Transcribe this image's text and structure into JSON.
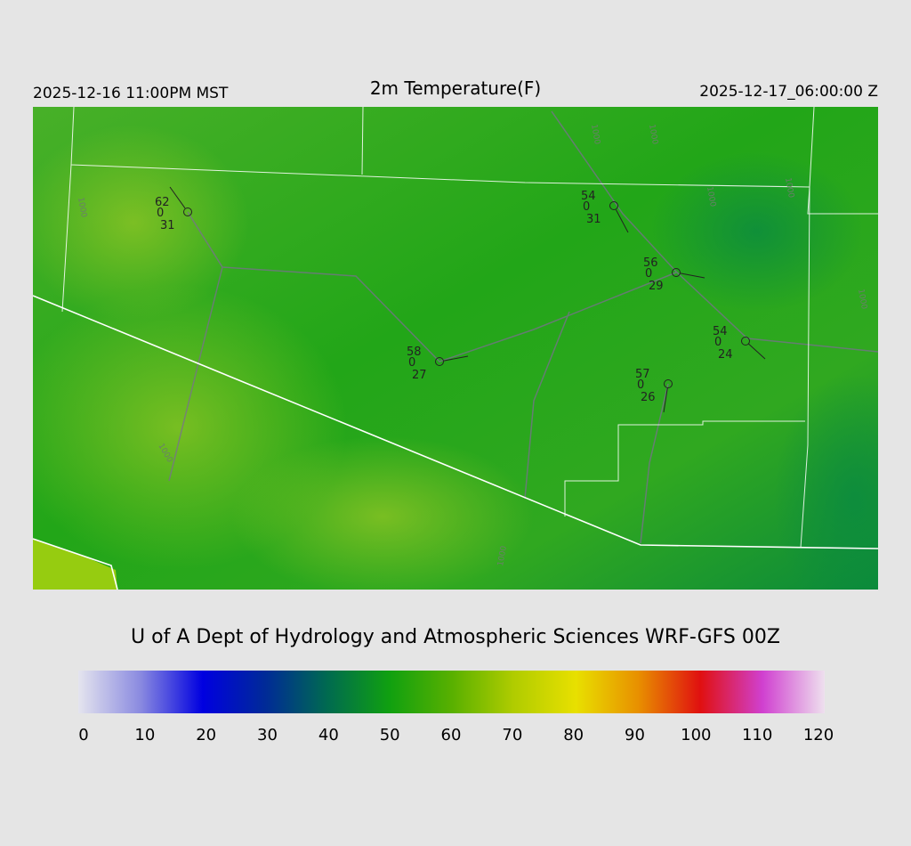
{
  "header": {
    "left": "2025-12-16 11:00PM MST",
    "title": "2m Temperature(F)",
    "right": "2025-12-17_06:00:00 Z"
  },
  "stations": [
    {
      "temp": "62",
      "code": "0",
      "dew": "31"
    },
    {
      "temp": "54",
      "code": "0",
      "dew": "31"
    },
    {
      "temp": "56",
      "code": "0",
      "dew": "29"
    },
    {
      "temp": "54",
      "code": "0",
      "dew": "24"
    },
    {
      "temp": "58",
      "code": "0",
      "dew": "27"
    },
    {
      "temp": "57",
      "code": "0",
      "dew": "26"
    }
  ],
  "contour_labels": [
    "1000",
    "1000",
    "1000",
    "1000",
    "1000",
    "1000",
    "1000",
    "1000"
  ],
  "credit": "U of A Dept of Hydrology and Atmospheric Sciences WRF-GFS 00Z",
  "colorbar": {
    "lim": [
      0,
      120
    ],
    "ticks": [
      0,
      10,
      20,
      30,
      40,
      50,
      60,
      70,
      80,
      90,
      100,
      110,
      120
    ],
    "colors": [
      "#e4e4ee",
      "#8a8ae0",
      "#0000e0",
      "#002a98",
      "#006a50",
      "#10a010",
      "#58b000",
      "#b0cc00",
      "#e8e000",
      "#e89000",
      "#e01010",
      "#d040d0",
      "#eee0ee"
    ]
  }
}
